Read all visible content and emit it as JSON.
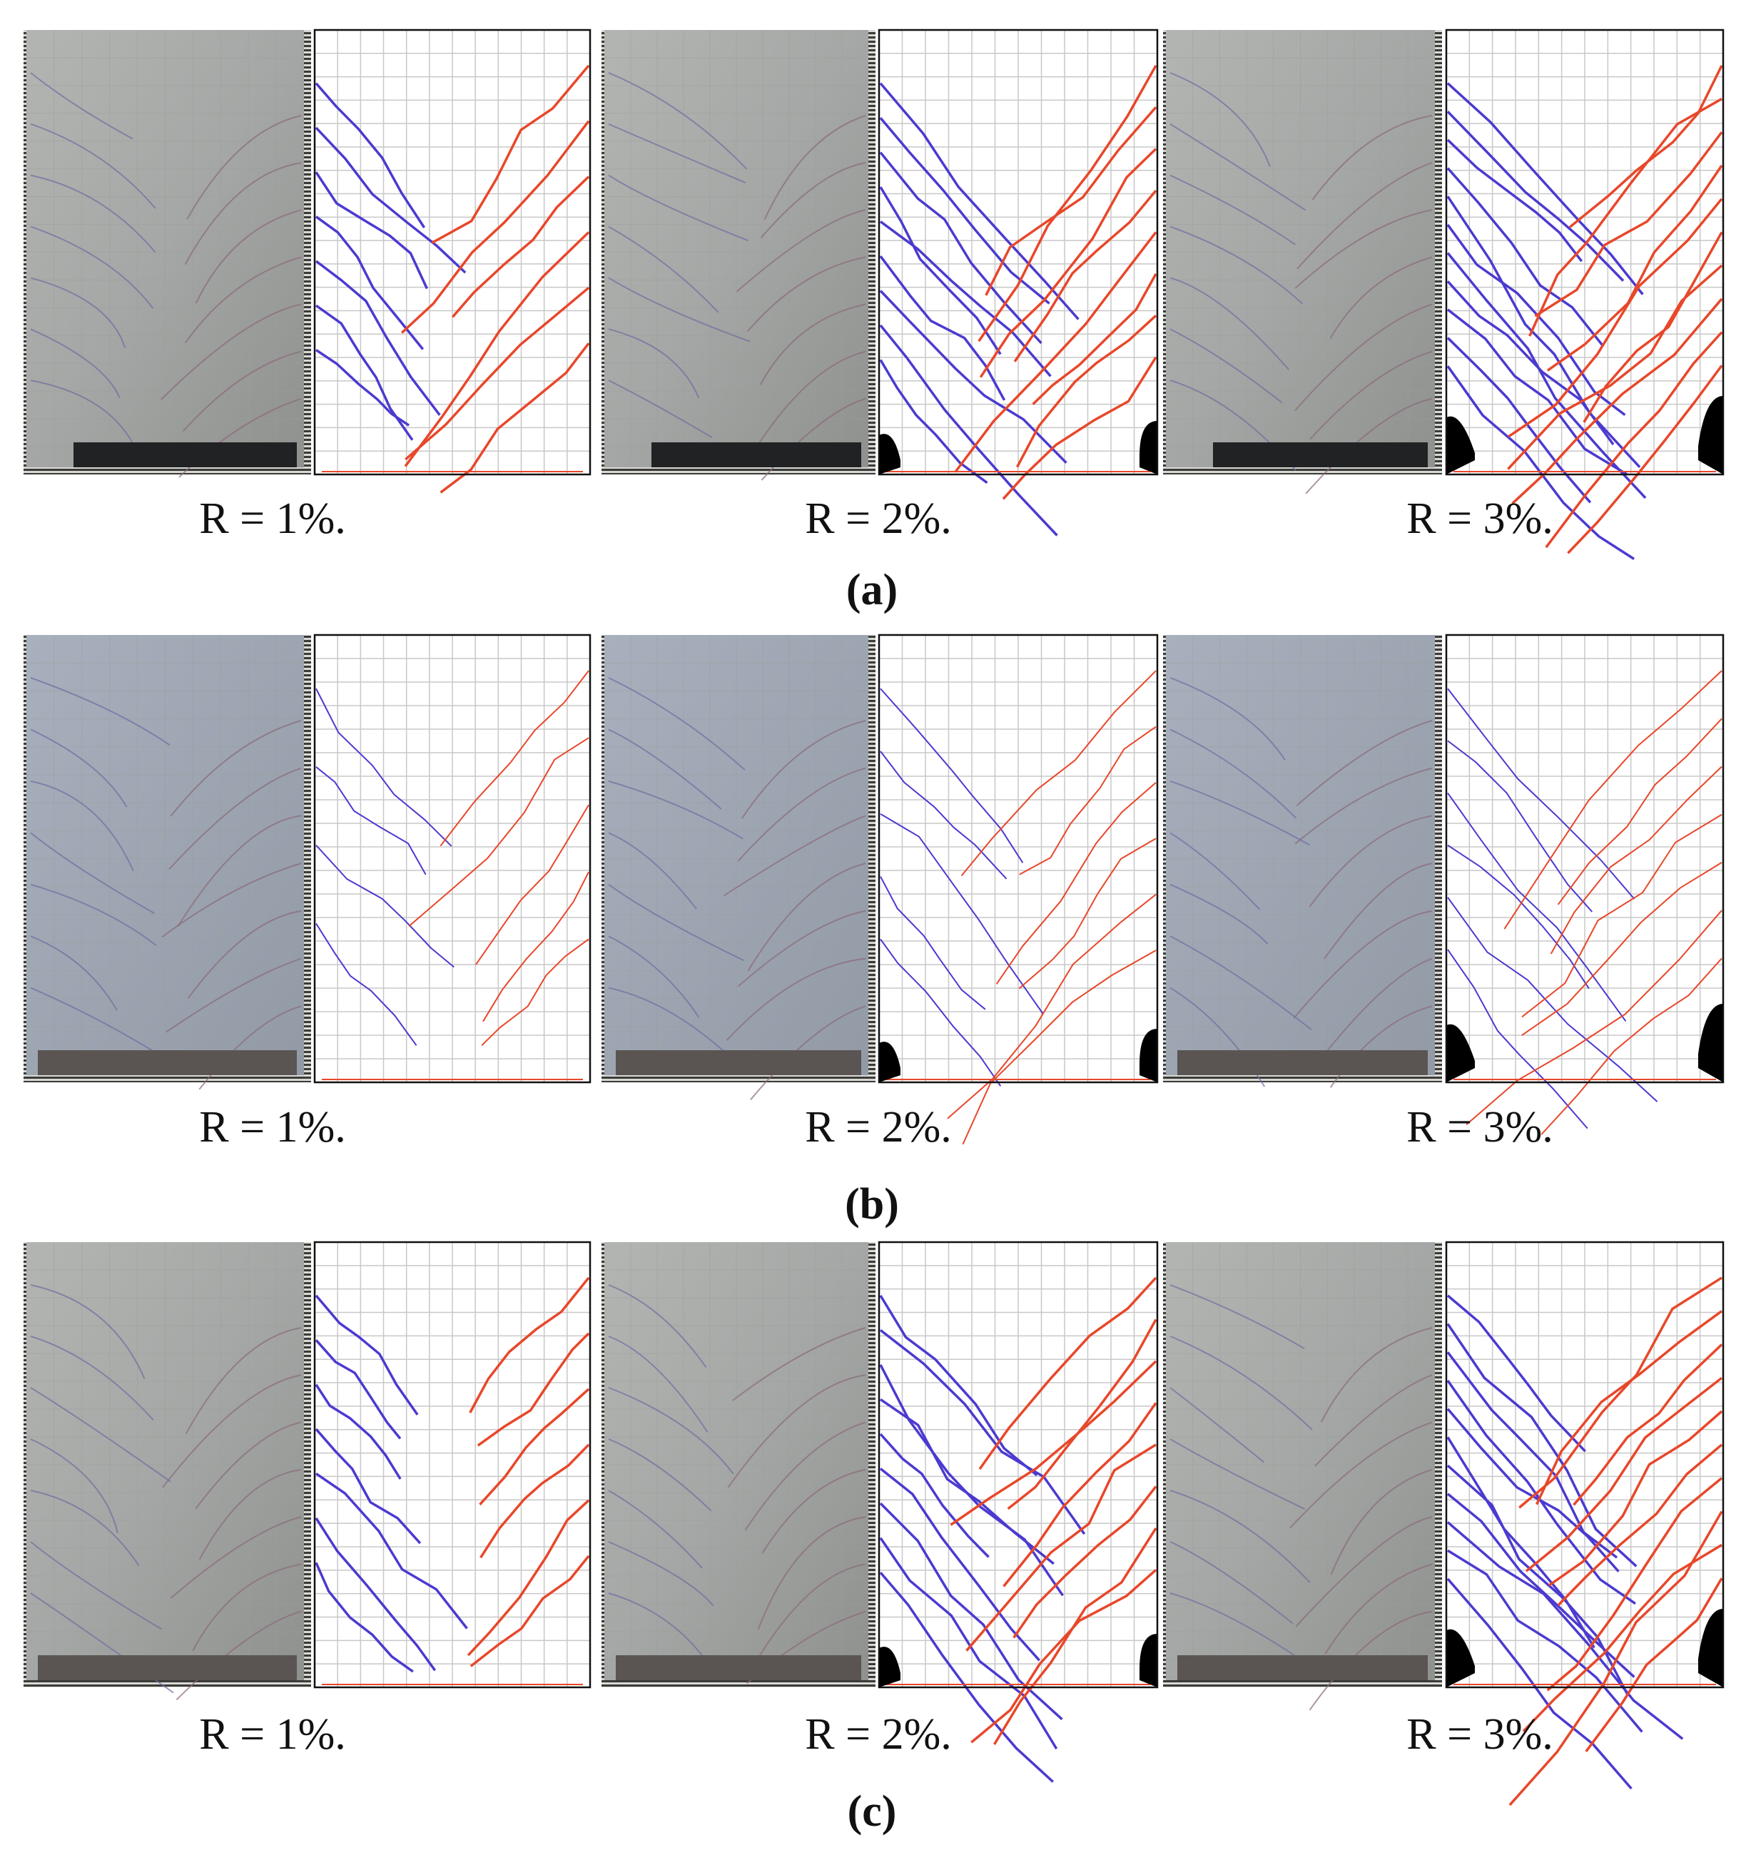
{
  "figure": {
    "rows": [
      {
        "label": "(a)",
        "panels": [
          {
            "caption": "R = 1%."
          },
          {
            "caption": "R = 2%."
          },
          {
            "caption": "R = 3%."
          }
        ]
      },
      {
        "label": "(b)",
        "panels": [
          {
            "caption": "R = 1%."
          },
          {
            "caption": "R = 2%."
          },
          {
            "caption": "R = 3%."
          }
        ]
      },
      {
        "label": "(c)",
        "panels": [
          {
            "caption": "R = 1%."
          },
          {
            "caption": "R = 2%."
          },
          {
            "caption": "R = 3%."
          }
        ]
      }
    ]
  }
}
